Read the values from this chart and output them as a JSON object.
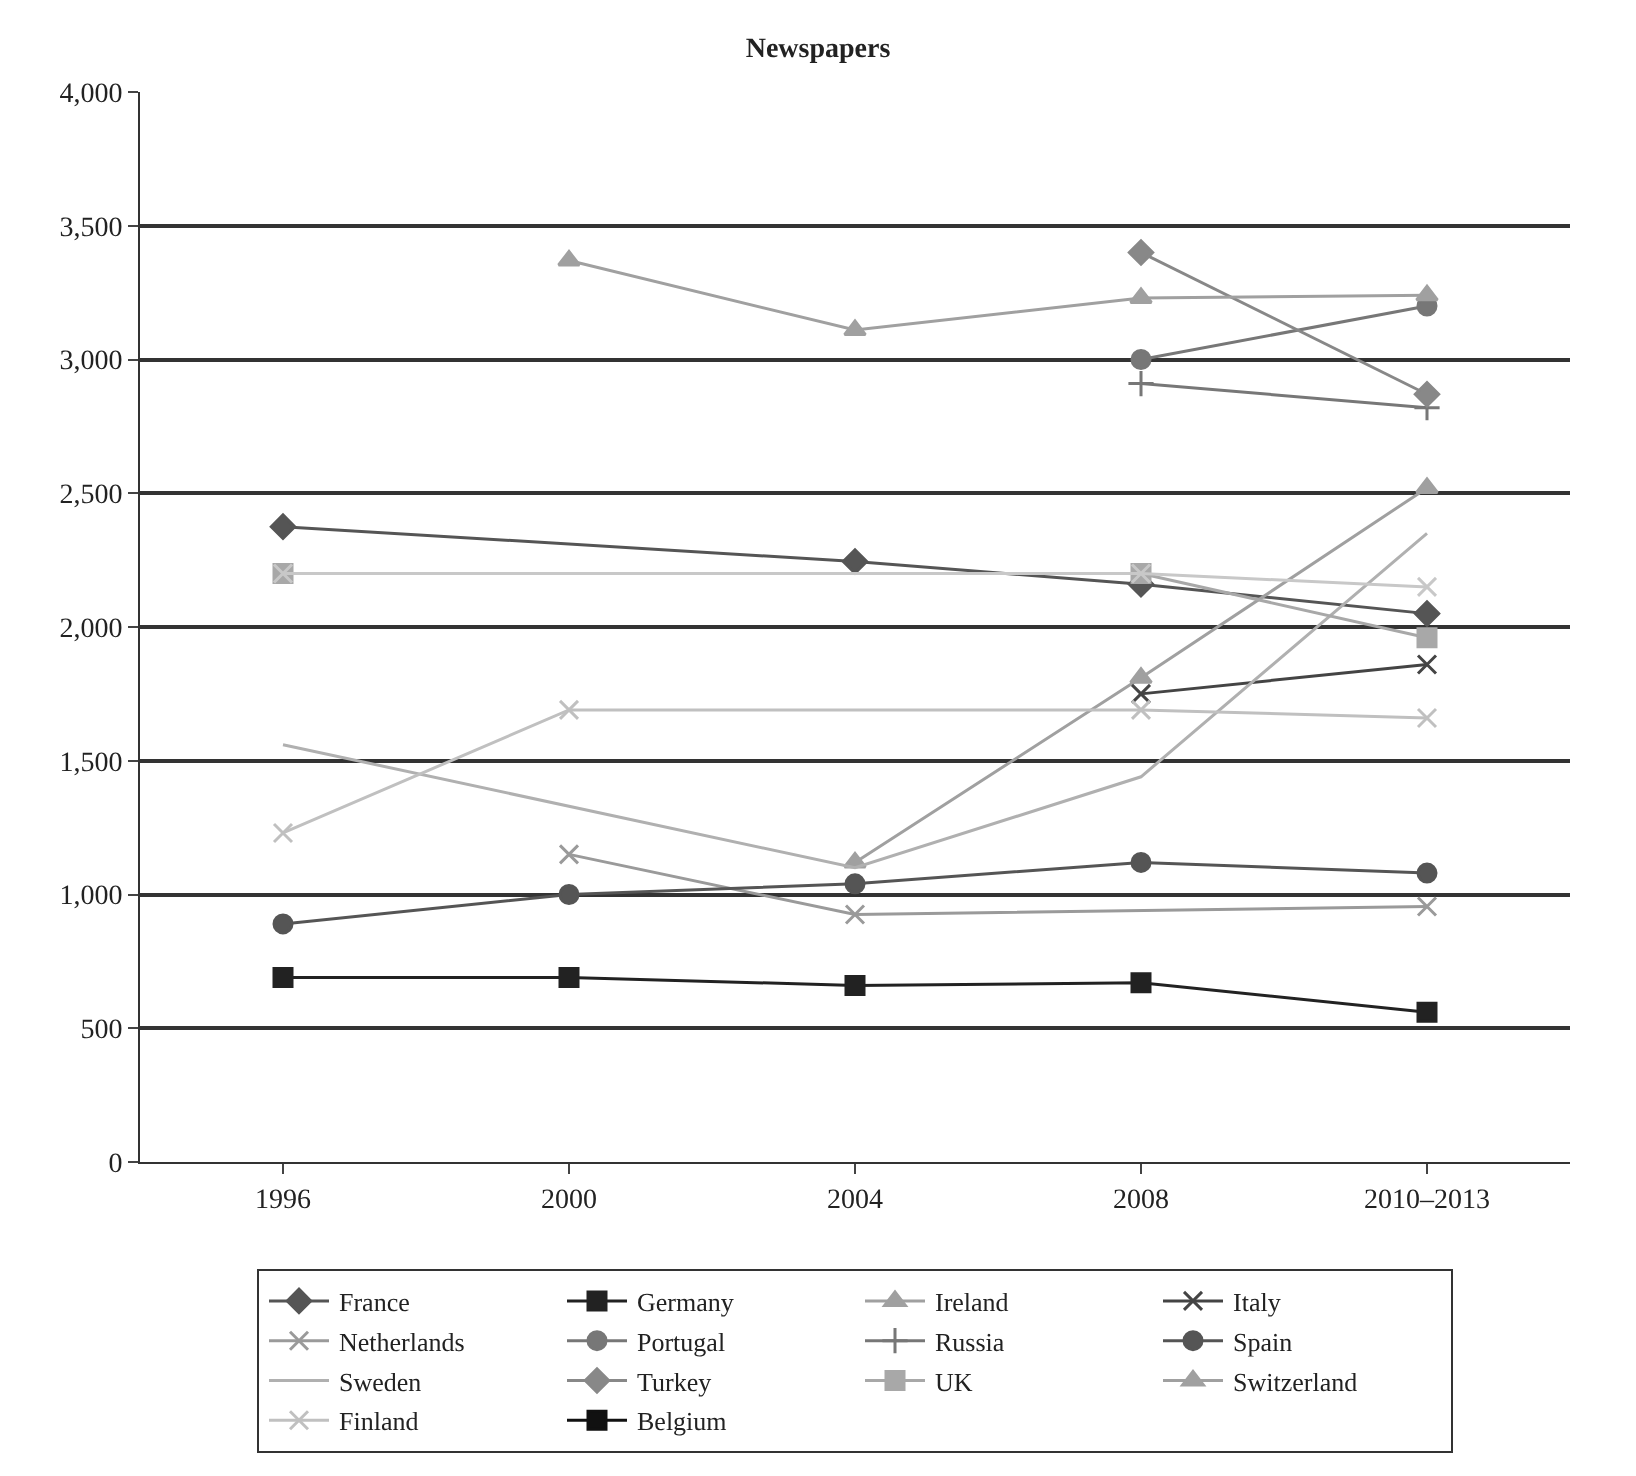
{
  "chart_data": {
    "type": "line",
    "title": "Newspapers",
    "categories": [
      "1996",
      "2000",
      "2004",
      "2008",
      "2010–2013"
    ],
    "ylim": [
      0,
      4000
    ],
    "yticks": [
      0,
      {
        "value": 500,
        "label": "500"
      },
      {
        "value": 1000,
        "label": "1,000"
      },
      {
        "value": 1500,
        "label": "1,500"
      },
      {
        "value": 2000,
        "label": "2,000"
      },
      {
        "value": 2500,
        "label": "2,500"
      },
      {
        "value": 3000,
        "label": "3,000"
      },
      {
        "value": 3500,
        "label": "3,500"
      },
      {
        "value": 4000,
        "label": "4,000"
      }
    ],
    "grid": "y",
    "legend": "bottom",
    "series": [
      {
        "name": "France",
        "color": "#555555",
        "marker": "diamond",
        "values": [
          2375,
          null,
          2245,
          2160,
          2050
        ]
      },
      {
        "name": "Germany",
        "color": "#222222",
        "marker": "square",
        "values": [
          690,
          690,
          660,
          670,
          560
        ]
      },
      {
        "name": "Ireland",
        "color": "#a0a0a0",
        "marker": "triangle",
        "values": [
          null,
          null,
          1120,
          1810,
          2520
        ]
      },
      {
        "name": "Italy",
        "color": "#444444",
        "marker": "cross",
        "values": [
          null,
          null,
          null,
          1750,
          1860
        ]
      },
      {
        "name": "Netherlands",
        "color": "#9a9a9a",
        "marker": "cross",
        "values": [
          null,
          1150,
          925,
          null,
          955
        ]
      },
      {
        "name": "Portugal",
        "color": "#777777",
        "marker": "circle",
        "values": [
          null,
          null,
          null,
          3000,
          3200
        ]
      },
      {
        "name": "Russia",
        "color": "#777777",
        "marker": "plus",
        "values": [
          null,
          null,
          null,
          2910,
          2820
        ]
      },
      {
        "name": "Spain",
        "color": "#555555",
        "marker": "circle",
        "values": [
          890,
          1000,
          1040,
          1120,
          1080
        ]
      },
      {
        "name": "Sweden",
        "color": "#b0b0b0",
        "marker": "none",
        "values": [
          1560,
          null,
          1100,
          1440,
          2350
        ]
      },
      {
        "name": "Turkey",
        "color": "#888888",
        "marker": "diamond",
        "values": [
          null,
          null,
          null,
          3400,
          2870
        ]
      },
      {
        "name": "UK",
        "color": "#a8a8a8",
        "marker": "square",
        "values": [
          2200,
          null,
          null,
          2200,
          1960
        ]
      },
      {
        "name": "Switzerland",
        "color": "#a0a0a0",
        "marker": "triangle",
        "values": [
          null,
          3370,
          3110,
          3230,
          3240
        ]
      },
      {
        "name": "Finland",
        "color": "#c0c0c0",
        "marker": "cross",
        "values": [
          1230,
          1690,
          null,
          1690,
          1660
        ]
      },
      {
        "name": "Belgium",
        "color": "#111111",
        "marker": "square",
        "values": [
          null,
          null,
          null,
          null,
          null
        ]
      },
      {
        "color": "#c8c8c8",
        "marker": "cross",
        "values": [
          2200,
          null,
          null,
          2200,
          2150
        ]
      }
    ]
  }
}
